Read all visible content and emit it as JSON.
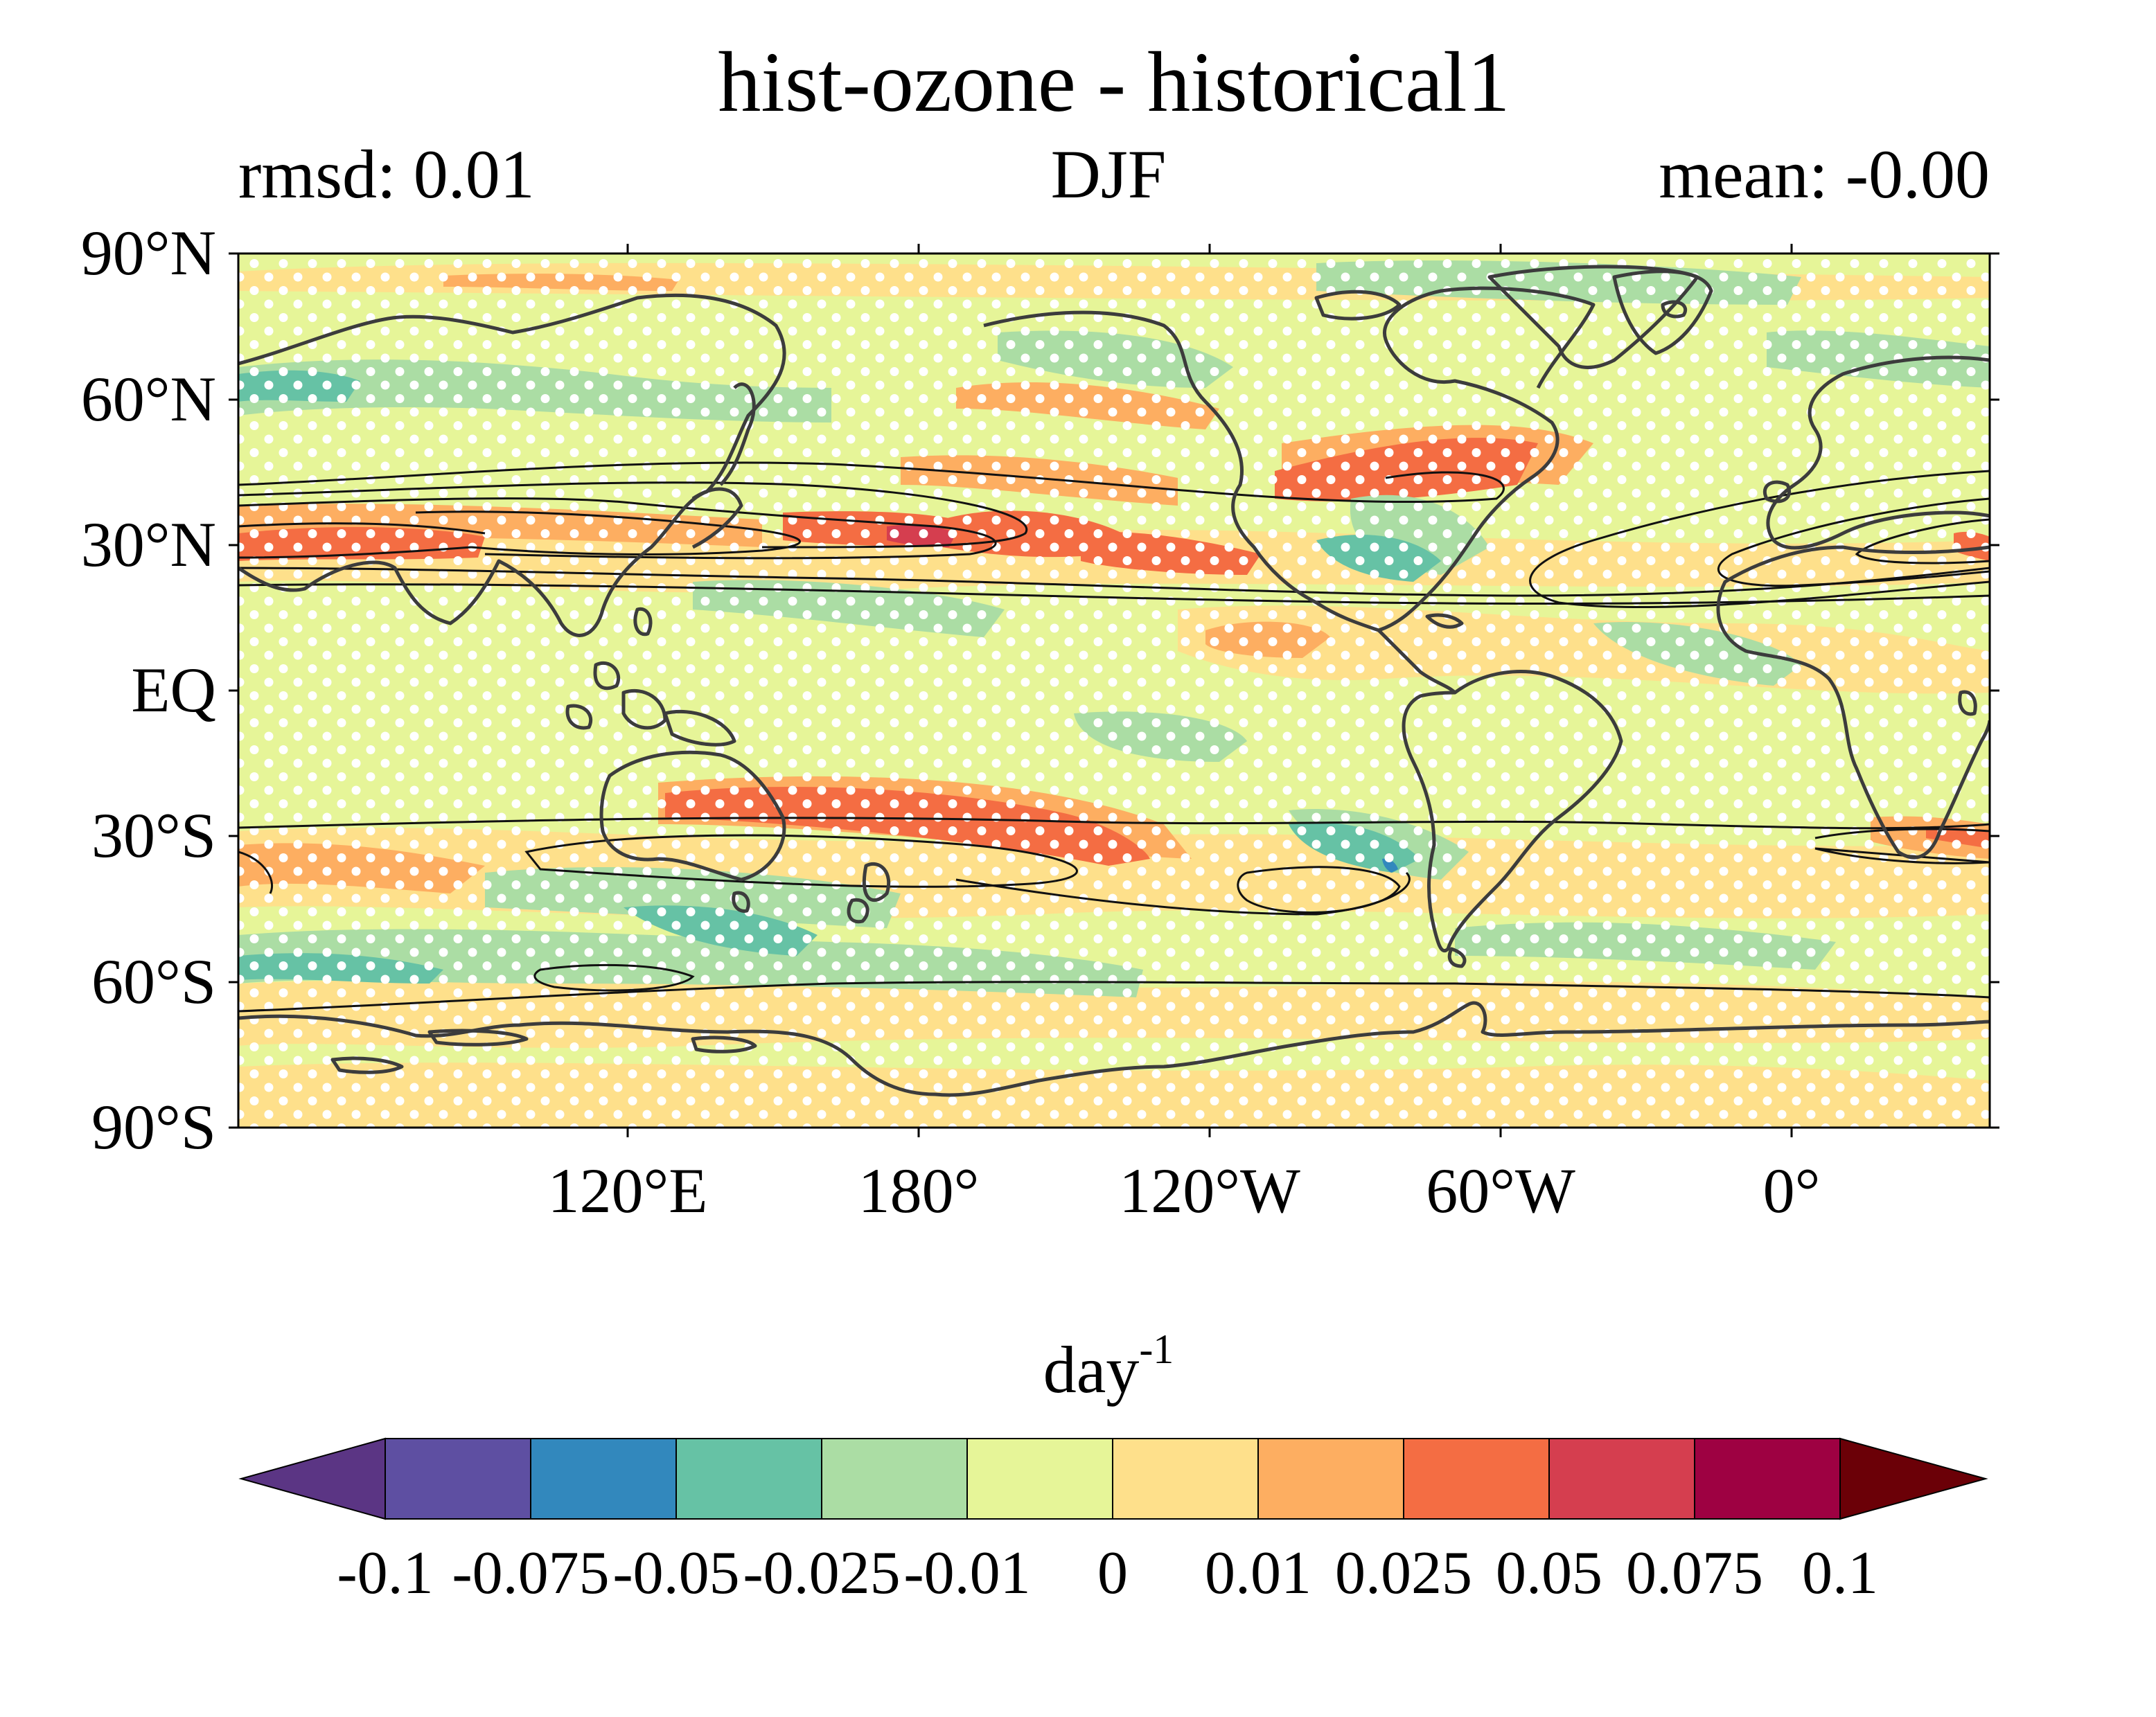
{
  "title": "hist-ozone - historical1",
  "left_label": "rmsd: 0.01",
  "center_label": "DJF",
  "right_label": "mean: -0.00",
  "map": {
    "lat_ticks": [
      "90°N",
      "60°N",
      "30°N",
      "EQ",
      "30°S",
      "60°S",
      "90°S"
    ],
    "lon_ticks": [
      "120°E",
      "180°",
      "120°W",
      "60°W",
      "0°"
    ],
    "land_color": "#3c3c3c",
    "contour_color": "#111111",
    "stipple_color": "#ffffff"
  },
  "colorbar": {
    "unit_base": "day",
    "unit_exp": "-1",
    "tick_labels": [
      "-0.1",
      "-0.075",
      "-0.05",
      "-0.025",
      "-0.01",
      "0",
      "0.01",
      "0.025",
      "0.05",
      "0.075",
      "0.1"
    ],
    "colors": [
      "#5e4fa2",
      "#3288bd",
      "#66c2a5",
      "#abdda4",
      "#e6f598",
      "#fee08b",
      "#fdae61",
      "#f46d43",
      "#d53e4f",
      "#9e0142"
    ],
    "under_color": "#5b3584",
    "over_color": "#6b0007"
  }
}
